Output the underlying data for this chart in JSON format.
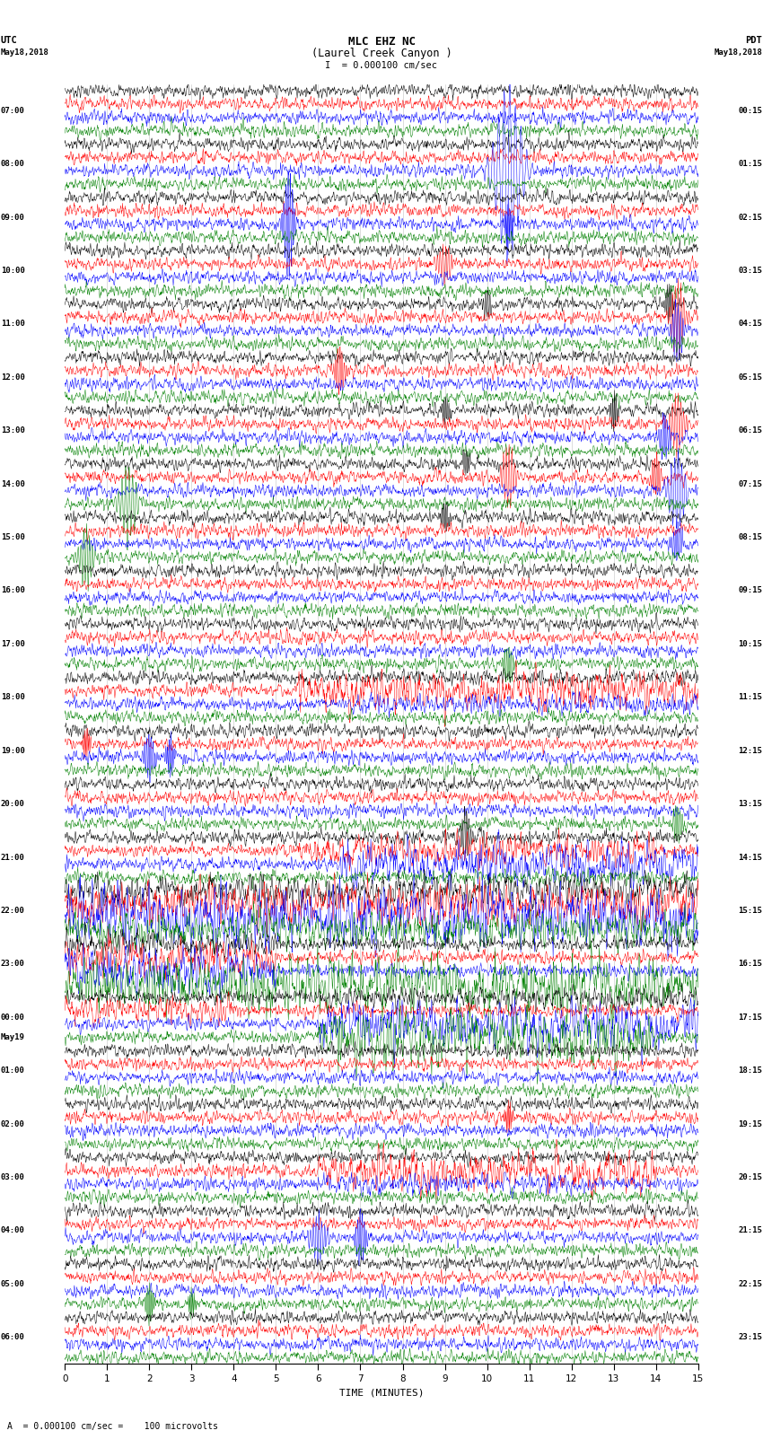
{
  "title_line1": "MLC EHZ NC",
  "title_line2": "(Laurel Creek Canyon )",
  "scale_label": "I  = 0.000100 cm/sec",
  "bottom_label": "A  = 0.000100 cm/sec =    100 microvolts",
  "utc_label": "UTC",
  "pdt_label": "PDT",
  "date_left": "May18,2018",
  "date_right": "May18,2018",
  "xlabel": "TIME (MINUTES)",
  "xlim": [
    0,
    15
  ],
  "xticks": [
    0,
    1,
    2,
    3,
    4,
    5,
    6,
    7,
    8,
    9,
    10,
    11,
    12,
    13,
    14,
    15
  ],
  "colors": [
    "black",
    "red",
    "blue",
    "green"
  ],
  "num_groups": 24,
  "traces_per_group": 4,
  "fig_width": 8.5,
  "fig_height": 16.13,
  "background_color": "white",
  "noise_amplitude": 0.06,
  "utc_times": [
    "07:00",
    "08:00",
    "09:00",
    "10:00",
    "11:00",
    "12:00",
    "13:00",
    "14:00",
    "15:00",
    "16:00",
    "17:00",
    "18:00",
    "19:00",
    "20:00",
    "21:00",
    "22:00",
    "23:00",
    "00:00",
    "01:00",
    "02:00",
    "03:00",
    "04:00",
    "05:00",
    "06:00"
  ],
  "pdt_times": [
    "00:15",
    "01:15",
    "02:15",
    "03:15",
    "04:15",
    "05:15",
    "06:15",
    "07:15",
    "08:15",
    "09:15",
    "10:15",
    "11:15",
    "12:15",
    "13:15",
    "14:15",
    "15:15",
    "16:15",
    "17:15",
    "18:15",
    "19:15",
    "20:15",
    "21:15",
    "22:15",
    "23:15"
  ],
  "may19_group": 17,
  "vline_color": "#888888",
  "vline_alpha": 0.5,
  "vline_lw": 0.4
}
